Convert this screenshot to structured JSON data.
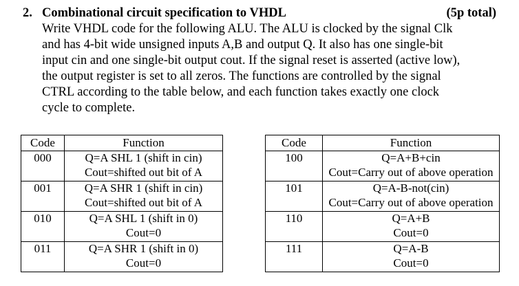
{
  "question": {
    "number": "2.",
    "title": "Combinational circuit specification to VHDL",
    "points": "(5p total)",
    "lines": [
      "Write VHDL code for the following ALU. The ALU is clocked by the signal Clk",
      "and has 4-bit wide unsigned inputs A,B and output Q. It also has one single-bit",
      "input cin and one single-bit output cout. If the signal reset is asserted (active low),",
      "the output register is set to all zeros. The functions are controlled by the signal",
      "CTRL according to the table below, and each function takes exactly one clock",
      "cycle to complete."
    ]
  },
  "left_table": {
    "headers": {
      "code": "Code",
      "function": "Function"
    },
    "rows": [
      {
        "code": "000",
        "line1": "Q=A SHL 1 (shift in cin)",
        "line2": "Cout=shifted out bit of A"
      },
      {
        "code": "001",
        "line1": "Q=A SHR 1 (shift in cin)",
        "line2": "Cout=shifted out bit of A"
      },
      {
        "code": "010",
        "line1": "Q=A SHL 1 (shift in 0)",
        "line2": "Cout=0"
      },
      {
        "code": "011",
        "line1": "Q=A SHR 1 (shift in 0)",
        "line2": "Cout=0"
      }
    ]
  },
  "right_table": {
    "headers": {
      "code": "Code",
      "function": "Function"
    },
    "rows": [
      {
        "code": "100",
        "line1": "Q=A+B+cin",
        "line2": "Cout=Carry out of above operation"
      },
      {
        "code": "101",
        "line1": "Q=A-B-not(cin)",
        "line2": "Cout=Carry out of above operation"
      },
      {
        "code": "110",
        "line1": "Q=A+B",
        "line2": "Cout=0"
      },
      {
        "code": "111",
        "line1": "Q=A-B",
        "line2": "Cout=0"
      }
    ]
  }
}
